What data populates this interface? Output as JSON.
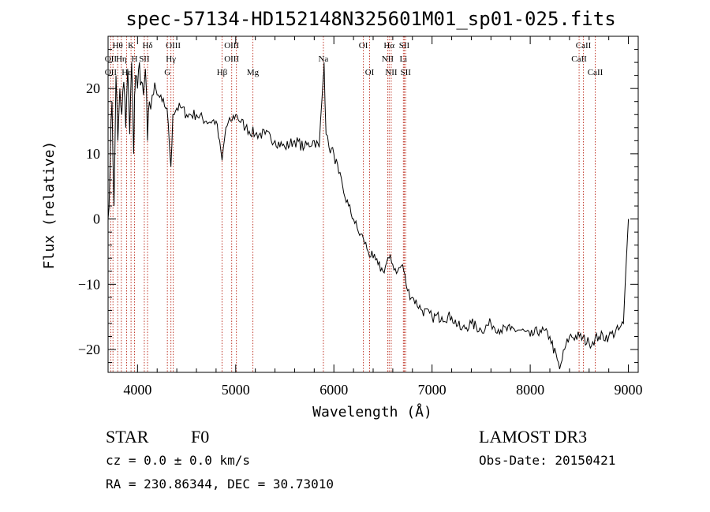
{
  "chart_data": {
    "type": "line",
    "title": "spec-57134-HD152148N325601M01_sp01-025.fits",
    "xlabel": "Wavelength (Å)",
    "ylabel": "Flux (relative)",
    "xlim": [
      3700,
      9100
    ],
    "ylim": [
      -23.5,
      28
    ],
    "xticks": [
      4000,
      5000,
      6000,
      7000,
      8000,
      9000
    ],
    "xtick_labels": [
      "4000",
      "5000",
      "6000",
      "7000",
      "8000",
      "9000"
    ],
    "yticks": [
      -20,
      -10,
      0,
      10,
      20
    ],
    "ytick_labels": [
      "−20",
      "−10",
      "0",
      "10",
      "20"
    ],
    "grid": false,
    "series": [
      {
        "x": [
          3700,
          3720,
          3740,
          3760,
          3780,
          3800,
          3820,
          3840,
          3860,
          3880,
          3900,
          3920,
          3940,
          3960,
          3970,
          3980,
          4000,
          4020,
          4040,
          4060,
          4080,
          4102,
          4120,
          4150,
          4200,
          4250,
          4300,
          4340,
          4360,
          4400,
          4450,
          4500,
          4600,
          4700,
          4800,
          4861,
          4900,
          4950,
          5000,
          5100,
          5200,
          5300,
          5400,
          5500,
          5600,
          5700,
          5800,
          5850,
          5893,
          5900,
          5920,
          5950,
          6000,
          6050,
          6100,
          6150,
          6200,
          6250,
          6300,
          6350,
          6400,
          6450,
          6500,
          6563,
          6600,
          6650,
          6700,
          6750,
          6800,
          6900,
          7000,
          7100,
          7200,
          7300,
          7400,
          7500,
          7600,
          7700,
          7800,
          7900,
          8000,
          8100,
          8200,
          8300,
          8350,
          8400,
          8500,
          8600,
          8700,
          8800,
          8900,
          8950,
          9000
        ],
        "y": [
          0,
          8,
          18,
          2,
          22,
          12,
          20,
          16,
          21,
          14,
          23,
          13,
          24,
          10,
          19,
          22,
          20,
          24,
          21,
          19,
          23,
          12,
          18,
          19,
          19,
          18,
          17,
          8,
          16,
          17,
          17,
          16,
          16,
          15,
          15,
          9,
          14,
          15,
          16,
          14,
          13,
          13,
          12,
          11,
          12,
          11,
          12,
          11,
          22,
          24,
          13,
          11,
          10,
          7,
          4,
          2,
          0,
          -2,
          -3,
          -5,
          -6,
          -7,
          -8,
          -6,
          -7,
          -8,
          -7,
          -11,
          -12,
          -14,
          -15,
          -15,
          -15,
          -17,
          -16,
          -17,
          -16,
          -17,
          -17,
          -17,
          -18,
          -17,
          -18,
          -23,
          -20,
          -18,
          -18,
          -19,
          -18,
          -18,
          -17,
          -16,
          0
        ]
      }
    ],
    "line_labels": {
      "row1": [
        {
          "text": "Hθ",
          "x": 3798
        },
        {
          "text": "K",
          "x": 3934
        },
        {
          "text": "Hδ",
          "x": 4102
        },
        {
          "text": "OIII",
          "x": 4364
        },
        {
          "text": "OIII",
          "x": 4959
        },
        {
          "text": "OI",
          "x": 6300
        },
        {
          "text": "Hα",
          "x": 6563
        },
        {
          "text": "SII",
          "x": 6717
        },
        {
          "text": "CaII",
          "x": 8542
        }
      ],
      "row2": [
        {
          "text": "OII",
          "x": 3727
        },
        {
          "text": "Hη",
          "x": 3835
        },
        {
          "text": "H",
          "x": 3969
        },
        {
          "text": "SII",
          "x": 4069
        },
        {
          "text": "Hγ",
          "x": 4340
        },
        {
          "text": "OIII",
          "x": 4959
        },
        {
          "text": "Na",
          "x": 5893
        },
        {
          "text": "NII",
          "x": 6548
        },
        {
          "text": "Li",
          "x": 6708
        },
        {
          "text": "CaII",
          "x": 8498
        }
      ],
      "row3": [
        {
          "text": "OII",
          "x": 3727
        },
        {
          "text": "Hε",
          "x": 3889
        },
        {
          "text": "G",
          "x": 4304
        },
        {
          "text": "Hβ",
          "x": 4861
        },
        {
          "text": "Mg",
          "x": 5175
        },
        {
          "text": "OI",
          "x": 6364
        },
        {
          "text": "NII",
          "x": 6584
        },
        {
          "text": "SII",
          "x": 6731
        },
        {
          "text": "CaII",
          "x": 8662
        }
      ]
    },
    "line_positions": [
      3727,
      3750,
      3798,
      3835,
      3889,
      3934,
      3969,
      4069,
      4102,
      4304,
      4340,
      4364,
      4861,
      4959,
      5007,
      5175,
      5893,
      6300,
      6364,
      6548,
      6563,
      6584,
      6708,
      6717,
      6731,
      8498,
      8542,
      8662
    ],
    "line_color": "#c0392b"
  },
  "footer": {
    "class_label": "STAR",
    "subclass": "F0",
    "survey": "LAMOST DR3",
    "cz": "cz = 0.0 ± 0.0 km/s",
    "obs_date": "Obs-Date: 20150421",
    "radec": "RA = 230.86344, DEC =  30.73010"
  }
}
